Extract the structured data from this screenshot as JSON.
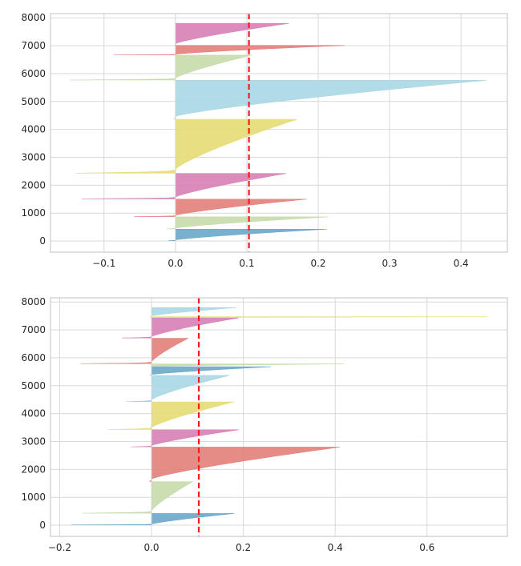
{
  "chart_data": [
    {
      "type": "area",
      "title": "",
      "xlabel": "",
      "ylabel": "",
      "xlim": [
        -0.175,
        0.465
      ],
      "ylim": [
        -400,
        8150
      ],
      "xticks": [
        -0.1,
        0.0,
        0.1,
        0.2,
        0.3,
        0.4
      ],
      "xtick_labels": [
        "−0.1",
        "0.0",
        "0.1",
        "0.2",
        "0.3",
        "0.4"
      ],
      "yticks": [
        0,
        1000,
        2000,
        3000,
        4000,
        5000,
        6000,
        7000,
        8000
      ],
      "ytick_labels": [
        "0",
        "1000",
        "2000",
        "3000",
        "4000",
        "5000",
        "6000",
        "7000",
        "8000"
      ],
      "grid": true,
      "average_silhouette": 0.103,
      "clusters": [
        {
          "color": "#6aa7c9",
          "y_start": 10,
          "y_end": 425,
          "max": 0.212,
          "min": -0.01
        },
        {
          "color": "#c5dcab",
          "y_start": 435,
          "y_end": 865,
          "max": 0.214,
          "min": -0.012
        },
        {
          "color": "#e37f7a",
          "y_start": 875,
          "y_end": 1500,
          "max": 0.184,
          "min": -0.058
        },
        {
          "color": "#d77fb5",
          "y_start": 1510,
          "y_end": 2420,
          "max": 0.155,
          "min": -0.131
        },
        {
          "color": "#e5dc76",
          "y_start": 2430,
          "y_end": 4360,
          "max": 0.17,
          "min": -0.14
        },
        {
          "color": "#a9d7e4",
          "y_start": 4370,
          "y_end": 5760,
          "max": 0.435,
          "min": -0.002
        },
        {
          "color": "#c5dcab",
          "y_start": 5770,
          "y_end": 6660,
          "max": 0.107,
          "min": -0.148
        },
        {
          "color": "#e37f7a",
          "y_start": 6670,
          "y_end": 7010,
          "max": 0.237,
          "min": -0.086
        },
        {
          "color": "#d77fb5",
          "y_start": 7020,
          "y_end": 7800,
          "max": 0.159,
          "min": -0.001
        }
      ]
    },
    {
      "type": "area",
      "title": "",
      "xlabel": "",
      "ylabel": "",
      "xlim": [
        -0.22,
        0.775
      ],
      "ylim": [
        -400,
        8150
      ],
      "xticks": [
        -0.2,
        0.0,
        0.2,
        0.4,
        0.6
      ],
      "xtick_labels": [
        "−0.2",
        "0.0",
        "0.2",
        "0.4",
        "0.6"
      ],
      "yticks": [
        0,
        1000,
        2000,
        3000,
        4000,
        5000,
        6000,
        7000,
        8000
      ],
      "ytick_labels": [
        "0",
        "1000",
        "2000",
        "3000",
        "4000",
        "5000",
        "6000",
        "7000",
        "8000"
      ],
      "grid": true,
      "average_silhouette": 0.103,
      "clusters": [
        {
          "color": "#6aa7c9",
          "y_start": 10,
          "y_end": 420,
          "max": 0.18,
          "min": -0.175
        },
        {
          "color": "#c5dcab",
          "y_start": 430,
          "y_end": 1560,
          "max": 0.09,
          "min": -0.15
        },
        {
          "color": "#e37f7a",
          "y_start": 1570,
          "y_end": 2800,
          "max": 0.41,
          "min": -0.005
        },
        {
          "color": "#d77fb5",
          "y_start": 2810,
          "y_end": 3420,
          "max": 0.19,
          "min": -0.045
        },
        {
          "color": "#e5dc76",
          "y_start": 3430,
          "y_end": 4420,
          "max": 0.18,
          "min": -0.095
        },
        {
          "color": "#a9d7e4",
          "y_start": 4430,
          "y_end": 5370,
          "max": 0.17,
          "min": -0.055
        },
        {
          "color": "#6aa7c9",
          "y_start": 5380,
          "y_end": 5680,
          "max": 0.26,
          "min": -0.003
        },
        {
          "color": "#c5dcab",
          "y_start": 5690,
          "y_end": 5780,
          "max": 0.42,
          "min": -0.003
        },
        {
          "color": "#e37f7a",
          "y_start": 5790,
          "y_end": 6700,
          "max": 0.08,
          "min": -0.155
        },
        {
          "color": "#d77fb5",
          "y_start": 6710,
          "y_end": 7430,
          "max": 0.19,
          "min": -0.065
        },
        {
          "color": "#e5dc76",
          "y_start": 7440,
          "y_end": 7470,
          "max": 0.73,
          "min": -0.003
        },
        {
          "color": "#a9d7e4",
          "y_start": 7480,
          "y_end": 7800,
          "max": 0.185,
          "min": -0.003
        }
      ]
    }
  ]
}
